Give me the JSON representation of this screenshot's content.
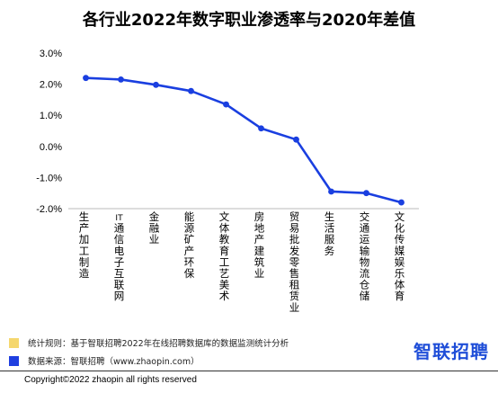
{
  "title": "各行业2022年数字职业渗透率与2020年差值",
  "chart_data": {
    "type": "line",
    "title": "各行业2022年数字职业渗透率与2020年差值",
    "categories": [
      "生产加工制造",
      "IT通信电子互联网",
      "金融业",
      "能源矿产环保",
      "文体教育工艺美术",
      "房地产建筑业",
      "贸易批发零售租赁业",
      "生活服务",
      "交通运输物流仓储",
      "文化传媒娱乐体育"
    ],
    "series": [
      {
        "values": [
          2.2,
          2.15,
          1.98,
          1.78,
          1.35,
          0.58,
          0.22,
          -1.45,
          -1.5,
          -1.8
        ]
      }
    ],
    "yticks": [
      3.0,
      2.0,
      1.0,
      0.0,
      -1.0,
      -2.0
    ],
    "ytick_labels": [
      "3.0%",
      "2.0%",
      "1.0%",
      "0.0%",
      "-1.0%",
      "-2.0%"
    ],
    "ylim": [
      -2.0,
      3.0
    ],
    "grid": false,
    "line_color": "#1a3fe0"
  },
  "notes": [
    {
      "label": "统计规则：基于智联招聘2022年在线招聘数据库的数据监测统计分析",
      "color": "#f5d76e"
    },
    {
      "label": "数据来源：智联招聘（www.zhaopin.com）",
      "color": "#1f3fe0"
    }
  ],
  "brand": "智联招聘",
  "copyright": "Copyright©2022 zhaopin all rights reserved"
}
